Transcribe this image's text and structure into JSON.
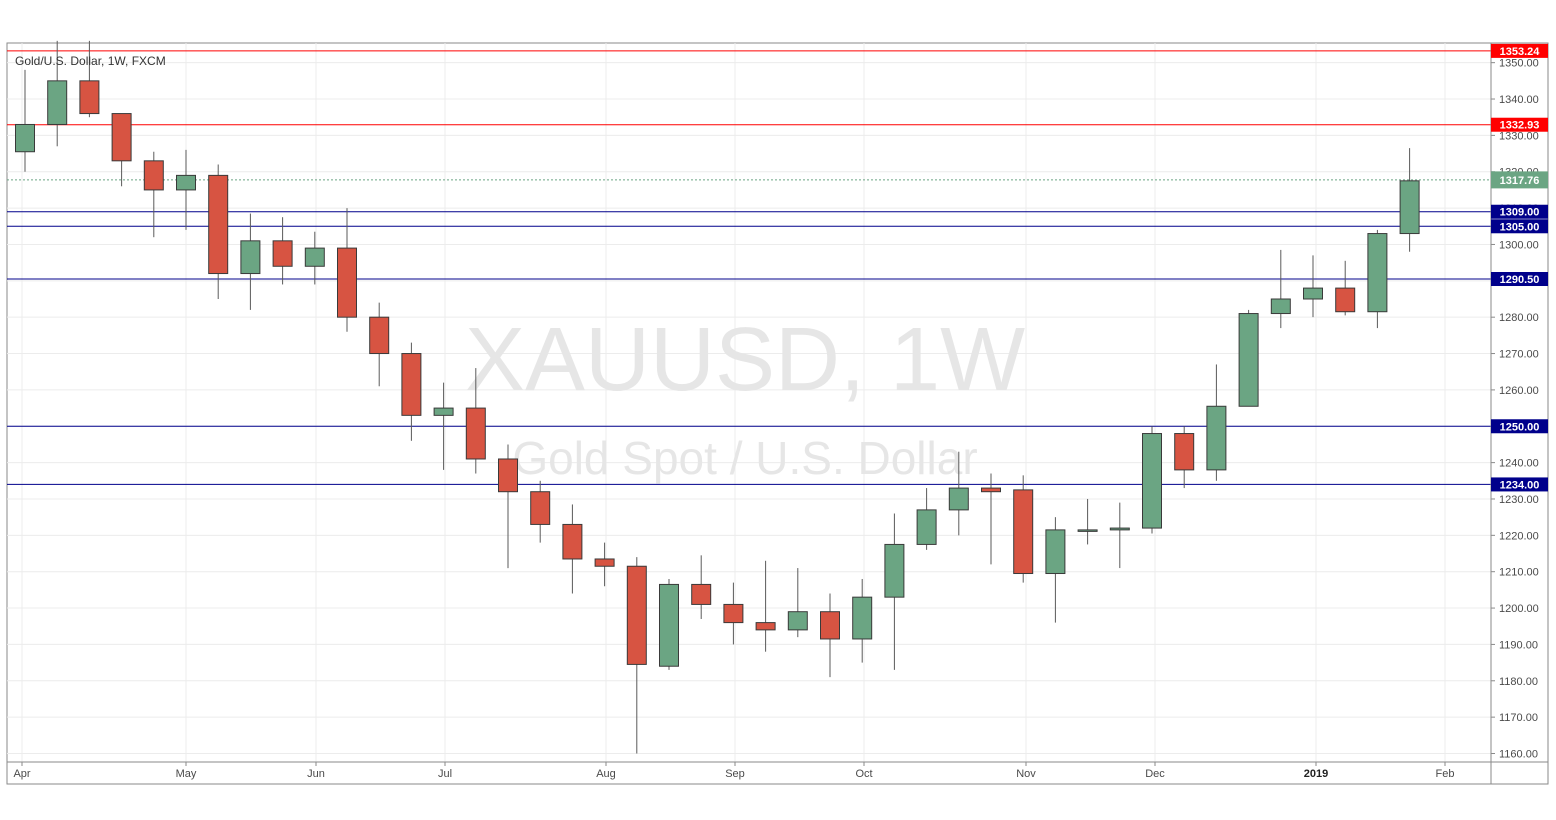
{
  "header": {
    "title": "Gold/U.S. Dollar, 1W, FXCM"
  },
  "watermark": {
    "symbol": "XAUUSD, 1W",
    "description": "Gold Spot / U.S. Dollar"
  },
  "colors": {
    "up": "#6ba583",
    "down": "#d75442",
    "wick": "#5a5a5a",
    "resistance": "#ff0000",
    "support": "#00008b",
    "current": "#6ba583"
  },
  "chart_data": {
    "type": "candlestick",
    "y_range": [
      1158,
      1356
    ],
    "y_ticks": [
      "1160.00",
      "1170.00",
      "1180.00",
      "1190.00",
      "1200.00",
      "1210.00",
      "1220.00",
      "1230.00",
      "1240.00",
      "1250.00",
      "1260.00",
      "1270.00",
      "1280.00",
      "1290.00",
      "1300.00",
      "1310.00",
      "1320.00",
      "1330.00",
      "1340.00",
      "1350.00"
    ],
    "x_labels": [
      "Apr",
      "May",
      "Jun",
      "Jul",
      "Aug",
      "Sep",
      "Oct",
      "Nov",
      "Dec",
      "2019",
      "Feb"
    ],
    "candles": [
      {
        "o": 1325.5,
        "h": 1348.0,
        "l": 1320.0,
        "c": 1333.0
      },
      {
        "o": 1333.0,
        "h": 1356.0,
        "l": 1327.0,
        "c": 1345.0
      },
      {
        "o": 1345.0,
        "h": 1356.0,
        "l": 1335.0,
        "c": 1336.0
      },
      {
        "o": 1336.0,
        "h": 1336.0,
        "l": 1316.0,
        "c": 1323.0
      },
      {
        "o": 1323.0,
        "h": 1325.5,
        "l": 1302.0,
        "c": 1315.0
      },
      {
        "o": 1315.0,
        "h": 1326.0,
        "l": 1304.0,
        "c": 1319.0
      },
      {
        "o": 1319.0,
        "h": 1322.0,
        "l": 1285.0,
        "c": 1292.0
      },
      {
        "o": 1292.0,
        "h": 1308.5,
        "l": 1282.0,
        "c": 1301.0
      },
      {
        "o": 1301.0,
        "h": 1307.5,
        "l": 1289.0,
        "c": 1294.0
      },
      {
        "o": 1294.0,
        "h": 1303.5,
        "l": 1289.0,
        "c": 1299.0
      },
      {
        "o": 1299.0,
        "h": 1310.0,
        "l": 1276.0,
        "c": 1280.0
      },
      {
        "o": 1280.0,
        "h": 1284.0,
        "l": 1261.0,
        "c": 1270.0
      },
      {
        "o": 1270.0,
        "h": 1273.0,
        "l": 1246.0,
        "c": 1253.0
      },
      {
        "o": 1253.0,
        "h": 1262.0,
        "l": 1238.0,
        "c": 1255.0
      },
      {
        "o": 1255.0,
        "h": 1266.0,
        "l": 1237.0,
        "c": 1241.0
      },
      {
        "o": 1241.0,
        "h": 1245.0,
        "l": 1211.0,
        "c": 1232.0
      },
      {
        "o": 1232.0,
        "h": 1235.0,
        "l": 1218.0,
        "c": 1223.0
      },
      {
        "o": 1223.0,
        "h": 1228.5,
        "l": 1204.0,
        "c": 1213.5
      },
      {
        "o": 1213.5,
        "h": 1218.0,
        "l": 1206.0,
        "c": 1211.5
      },
      {
        "o": 1211.5,
        "h": 1214.0,
        "l": 1160.0,
        "c": 1184.5
      },
      {
        "o": 1184.0,
        "h": 1208.0,
        "l": 1183.0,
        "c": 1206.5
      },
      {
        "o": 1206.5,
        "h": 1214.5,
        "l": 1197.0,
        "c": 1201.0
      },
      {
        "o": 1201.0,
        "h": 1207.0,
        "l": 1190.0,
        "c": 1196.0
      },
      {
        "o": 1196.0,
        "h": 1213.0,
        "l": 1188.0,
        "c": 1194.0
      },
      {
        "o": 1194.0,
        "h": 1211.0,
        "l": 1192.0,
        "c": 1199.0
      },
      {
        "o": 1199.0,
        "h": 1204.0,
        "l": 1181.0,
        "c": 1191.5
      },
      {
        "o": 1191.5,
        "h": 1208.0,
        "l": 1185.0,
        "c": 1203.0
      },
      {
        "o": 1203.0,
        "h": 1226.0,
        "l": 1183.0,
        "c": 1217.5
      },
      {
        "o": 1217.5,
        "h": 1233.0,
        "l": 1216.0,
        "c": 1227.0
      },
      {
        "o": 1227.0,
        "h": 1243.0,
        "l": 1220.0,
        "c": 1233.0
      },
      {
        "o": 1233.0,
        "h": 1237.0,
        "l": 1212.0,
        "c": 1232.0
      },
      {
        "o": 1232.5,
        "h": 1236.5,
        "l": 1207.0,
        "c": 1209.5
      },
      {
        "o": 1209.5,
        "h": 1225.0,
        "l": 1196.0,
        "c": 1221.5
      },
      {
        "o": 1221.5,
        "h": 1230.0,
        "l": 1217.5,
        "c": 1221.5
      },
      {
        "o": 1221.5,
        "h": 1229.0,
        "l": 1211.0,
        "c": 1222.0
      },
      {
        "o": 1222.0,
        "h": 1250.0,
        "l": 1220.5,
        "c": 1248.0
      },
      {
        "o": 1248.0,
        "h": 1250.0,
        "l": 1233.0,
        "c": 1238.0
      },
      {
        "o": 1238.0,
        "h": 1267.0,
        "l": 1235.0,
        "c": 1255.5
      },
      {
        "o": 1255.5,
        "h": 1282.0,
        "l": 1255.5,
        "c": 1281.0
      },
      {
        "o": 1281.0,
        "h": 1298.5,
        "l": 1277.0,
        "c": 1285.0
      },
      {
        "o": 1285.0,
        "h": 1297.0,
        "l": 1280.0,
        "c": 1288.0
      },
      {
        "o": 1288.0,
        "h": 1295.5,
        "l": 1280.5,
        "c": 1281.5
      },
      {
        "o": 1281.5,
        "h": 1304.0,
        "l": 1277.0,
        "c": 1303.0
      },
      {
        "o": 1303.0,
        "h": 1326.5,
        "l": 1298.0,
        "c": 1317.5
      }
    ],
    "levels": [
      {
        "value": 1353.24,
        "label": "1353.24",
        "kind": "resistance"
      },
      {
        "value": 1332.93,
        "label": "1332.93",
        "kind": "resistance"
      },
      {
        "value": 1317.76,
        "label": "1317.76",
        "kind": "current"
      },
      {
        "value": 1309.0,
        "label": "1309.00",
        "kind": "support"
      },
      {
        "value": 1305.0,
        "label": "1305.00",
        "kind": "support"
      },
      {
        "value": 1290.5,
        "label": "1290.50",
        "kind": "support"
      },
      {
        "value": 1250.0,
        "label": "1250.00",
        "kind": "support"
      },
      {
        "value": 1234.0,
        "label": "1234.00",
        "kind": "support"
      }
    ]
  }
}
